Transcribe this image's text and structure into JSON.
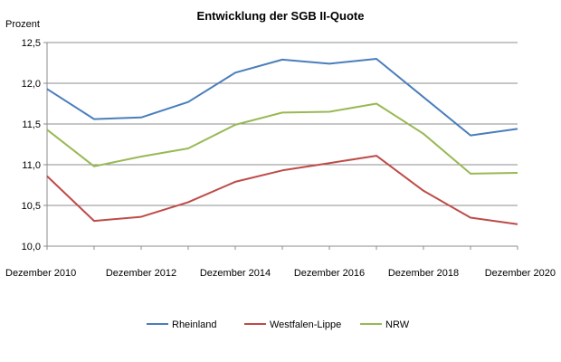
{
  "chart_data": {
    "type": "line",
    "title": "Entwicklung der SGB II-Quote",
    "ylabel": "Prozent",
    "xlabel": "",
    "ylim": [
      10.0,
      12.5
    ],
    "yticks": [
      "10,0",
      "10,5",
      "11,0",
      "11,5",
      "12,0",
      "12,5"
    ],
    "ytick_values": [
      10.0,
      10.5,
      11.0,
      11.5,
      12.0,
      12.5
    ],
    "x": [
      "Dezember 2010",
      "Dezember 2011",
      "Dezember 2012",
      "Dezember 2013",
      "Dezember 2014",
      "Dezember 2015",
      "Dezember 2016",
      "Dezember 2017",
      "Dezember 2018",
      "Dezember 2019",
      "Dezember 2020"
    ],
    "xtick_labels": [
      "Dezember 2010",
      "Dezember 2012",
      "Dezember 2014",
      "Dezember 2016",
      "Dezember 2018",
      "Dezember 2020"
    ],
    "grid": true,
    "legend_position": "bottom",
    "series": [
      {
        "name": "Rheinland",
        "color": "#4a7ebb",
        "values": [
          11.93,
          11.56,
          11.58,
          11.77,
          12.13,
          12.29,
          12.24,
          12.3,
          11.83,
          11.36,
          11.44
        ]
      },
      {
        "name": "Westfalen-Lippe",
        "color": "#be4b48",
        "values": [
          10.86,
          10.31,
          10.36,
          10.54,
          10.79,
          10.93,
          11.02,
          11.11,
          10.68,
          10.35,
          10.27
        ]
      },
      {
        "name": "NRW",
        "color": "#98b954",
        "values": [
          11.43,
          10.98,
          11.1,
          11.2,
          11.49,
          11.64,
          11.65,
          11.75,
          11.38,
          10.89,
          10.9
        ]
      }
    ]
  }
}
